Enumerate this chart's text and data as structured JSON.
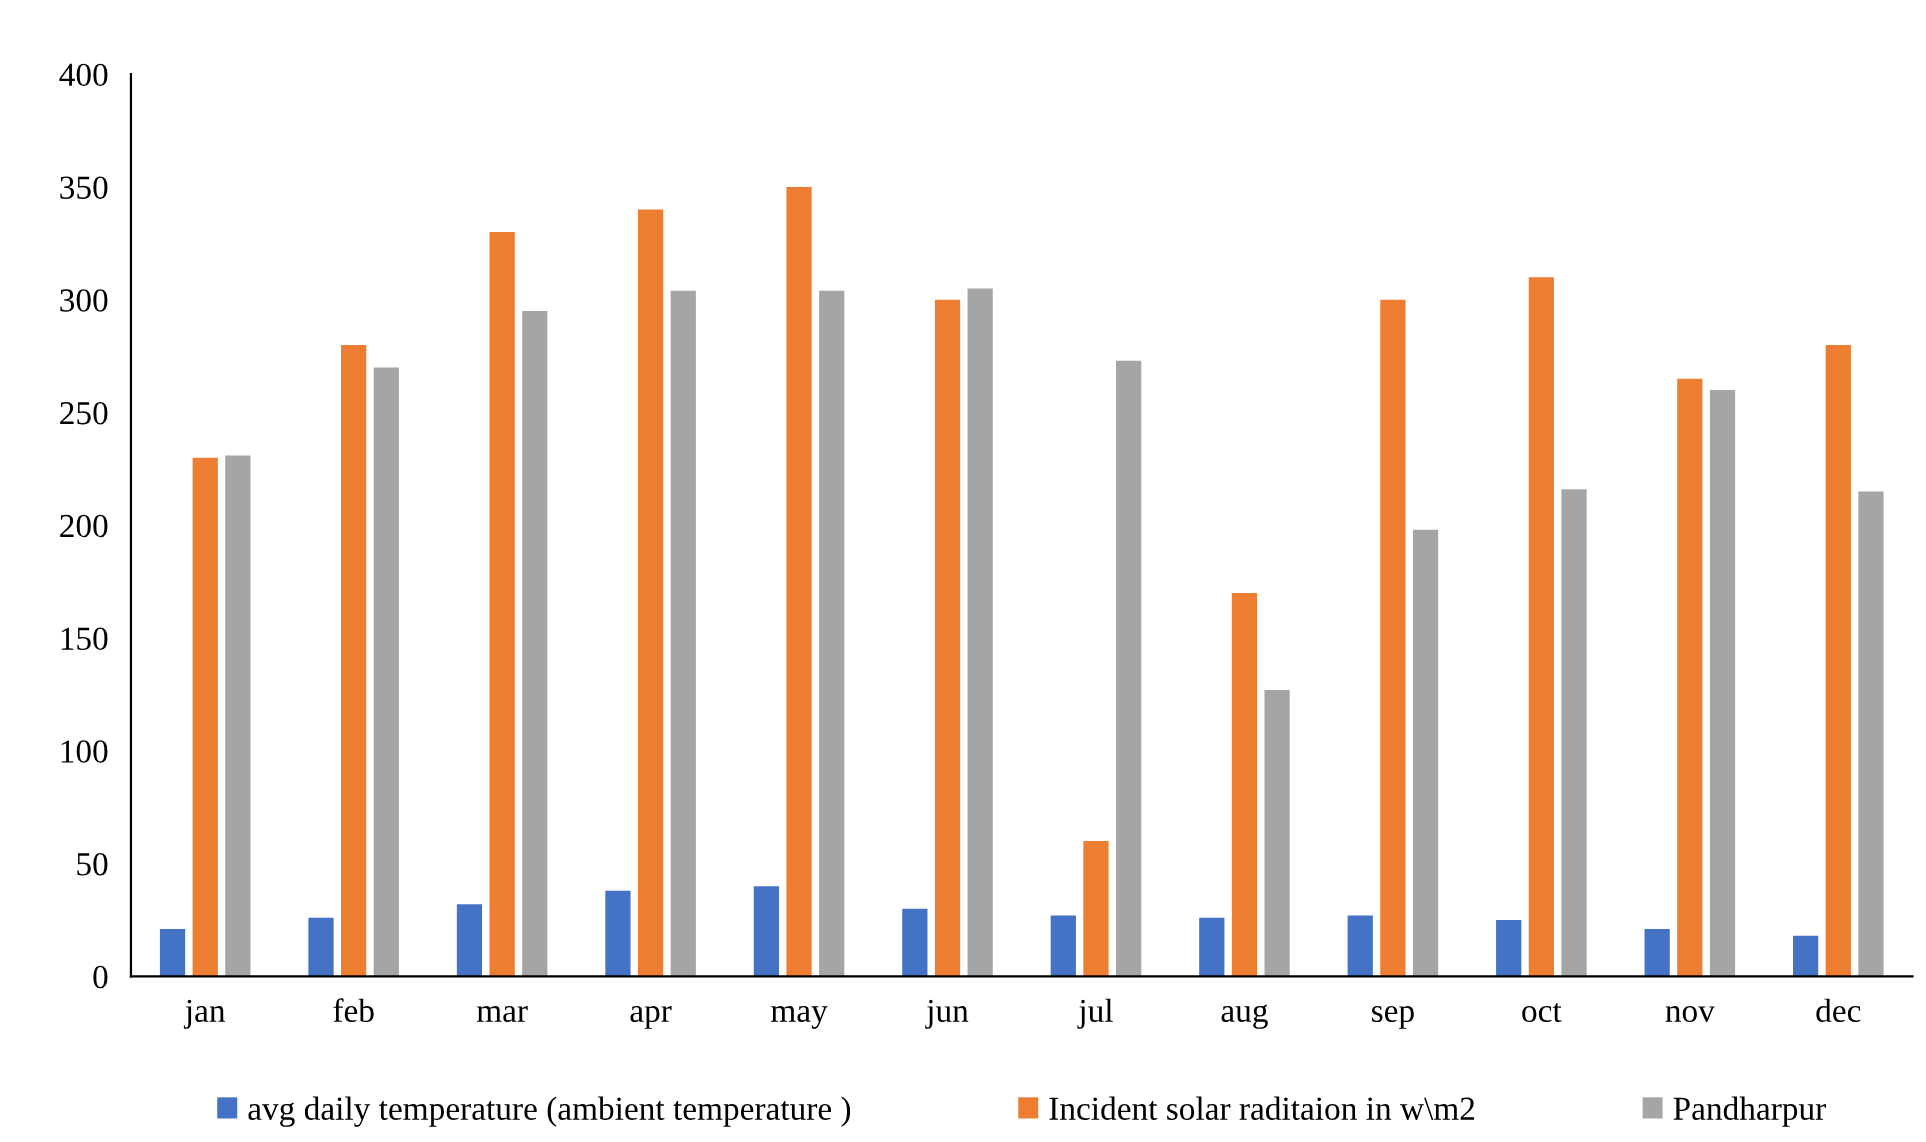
{
  "chart_data": {
    "type": "bar",
    "categories": [
      "jan",
      "feb",
      "mar",
      "apr",
      "may",
      "jun",
      "jul",
      "aug",
      "sep",
      "oct",
      "nov",
      "dec"
    ],
    "series": [
      {
        "name": "avg daily temperature (ambient temperature )",
        "color": "#4472c4",
        "values": [
          21,
          26,
          32,
          38,
          40,
          30,
          27,
          26,
          27,
          25,
          21,
          18
        ]
      },
      {
        "name": "Incident solar raditaion in w\\m2",
        "color": "#ed7d31",
        "values": [
          230,
          280,
          330,
          340,
          350,
          300,
          60,
          170,
          300,
          310,
          265,
          280
        ]
      },
      {
        "name": "Pandharpur",
        "color": "#a5a5a5",
        "values": [
          231,
          270,
          295,
          304,
          304,
          305,
          273,
          127,
          198,
          216,
          260,
          215
        ]
      }
    ],
    "ylim": [
      0,
      400
    ],
    "yticks": [
      0,
      50,
      100,
      150,
      200,
      250,
      300,
      350,
      400
    ],
    "grid": false,
    "legend": "bottom"
  }
}
